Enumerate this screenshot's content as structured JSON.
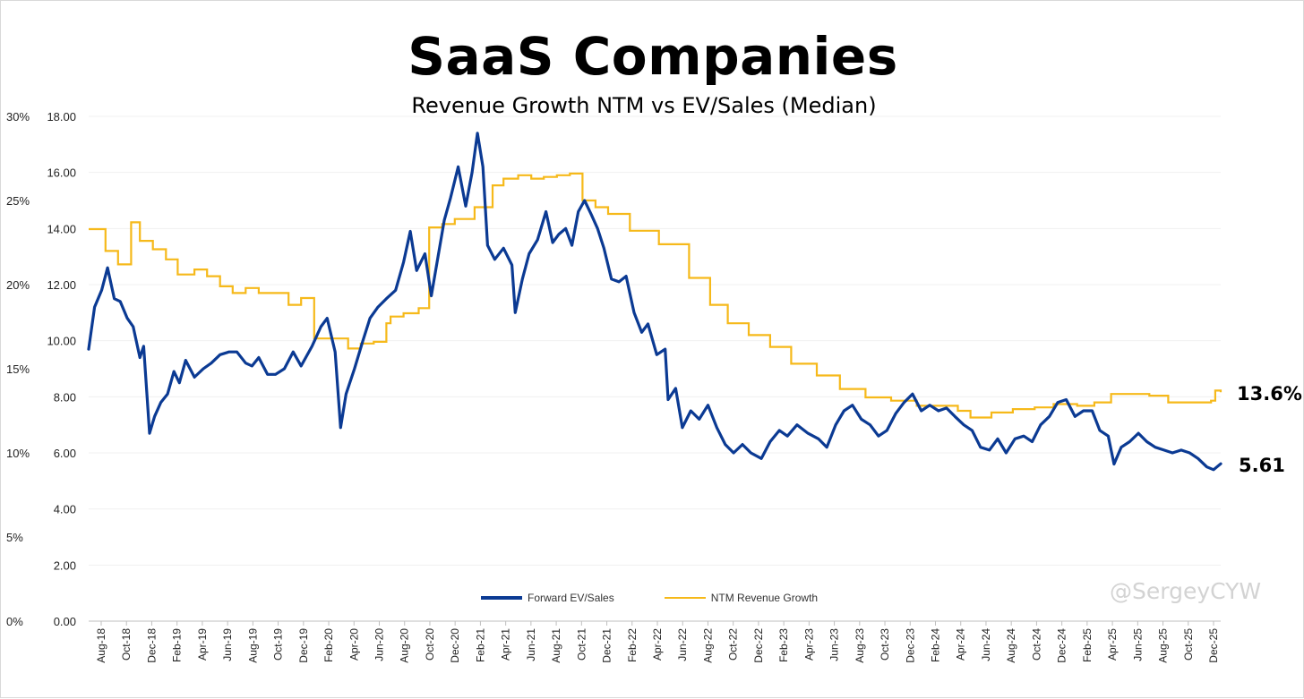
{
  "chart_data": {
    "type": "line",
    "title": "SaaS Companies",
    "subtitle": "Revenue Growth NTM vs EV/Sales (Median)",
    "left_axis_ticks": [
      "30%",
      "25%",
      "20%",
      "15%",
      "10%",
      "5%",
      "0%"
    ],
    "left_axis_values": [
      30,
      25,
      20,
      15,
      10,
      5,
      0
    ],
    "right_axis_ticks": [
      "18.00",
      "16.00",
      "14.00",
      "12.00",
      "10.00",
      "8.00",
      "6.00",
      "4.00",
      "2.00",
      "0.00"
    ],
    "right_axis_values": [
      18,
      16,
      14,
      12,
      10,
      8,
      6,
      4,
      2,
      0
    ],
    "ylim_growth": [
      0,
      30
    ],
    "ylim_evs": [
      0,
      18
    ],
    "x_ticks": [
      "Aug-18",
      "Oct-18",
      "Dec-18",
      "Feb-19",
      "Apr-19",
      "Jun-19",
      "Aug-19",
      "Oct-19",
      "Dec-19",
      "Feb-20",
      "Apr-20",
      "Jun-20",
      "Aug-20",
      "Oct-20",
      "Dec-20",
      "Feb-21",
      "Apr-21",
      "Jun-21",
      "Aug-21",
      "Oct-21",
      "Dec-21",
      "Feb-22",
      "Apr-22",
      "Jun-22",
      "Aug-22",
      "Oct-22",
      "Dec-22",
      "Feb-23",
      "Apr-23",
      "Jun-23",
      "Aug-23",
      "Oct-23",
      "Dec-23",
      "Feb-24",
      "Apr-24",
      "Jun-24",
      "Aug-24",
      "Oct-24",
      "Dec-24",
      "Feb-25",
      "Apr-25",
      "Jun-25",
      "Aug-25",
      "Oct-25",
      "Dec-25"
    ],
    "grid": "horizontal",
    "legend_position": "bottom",
    "series": [
      {
        "name": "Forward EV/Sales",
        "axis": "right",
        "color": "#0b3a93",
        "end_label": "5.61",
        "points": [
          [
            "2018-08-01",
            9.7
          ],
          [
            "2018-08-15",
            11.2
          ],
          [
            "2018-09-01",
            11.8
          ],
          [
            "2018-09-15",
            12.6
          ],
          [
            "2018-10-01",
            11.5
          ],
          [
            "2018-10-15",
            11.4
          ],
          [
            "2018-11-01",
            10.8
          ],
          [
            "2018-11-15",
            10.5
          ],
          [
            "2018-12-01",
            9.4
          ],
          [
            "2018-12-10",
            9.8
          ],
          [
            "2018-12-24",
            6.7
          ],
          [
            "2019-01-05",
            7.3
          ],
          [
            "2019-01-20",
            7.8
          ],
          [
            "2019-02-05",
            8.1
          ],
          [
            "2019-02-20",
            8.9
          ],
          [
            "2019-03-05",
            8.5
          ],
          [
            "2019-03-20",
            9.3
          ],
          [
            "2019-04-10",
            8.7
          ],
          [
            "2019-05-01",
            9.0
          ],
          [
            "2019-05-20",
            9.2
          ],
          [
            "2019-06-10",
            9.5
          ],
          [
            "2019-07-01",
            9.6
          ],
          [
            "2019-07-20",
            9.6
          ],
          [
            "2019-08-10",
            9.2
          ],
          [
            "2019-08-25",
            9.1
          ],
          [
            "2019-09-10",
            9.4
          ],
          [
            "2019-10-01",
            8.8
          ],
          [
            "2019-10-20",
            8.8
          ],
          [
            "2019-11-10",
            9.0
          ],
          [
            "2019-12-01",
            9.6
          ],
          [
            "2019-12-20",
            9.1
          ],
          [
            "2020-01-15",
            9.8
          ],
          [
            "2020-02-05",
            10.5
          ],
          [
            "2020-02-20",
            10.8
          ],
          [
            "2020-03-10",
            9.6
          ],
          [
            "2020-03-23",
            6.9
          ],
          [
            "2020-04-05",
            8.1
          ],
          [
            "2020-04-25",
            9.0
          ],
          [
            "2020-05-15",
            10.0
          ],
          [
            "2020-06-01",
            10.8
          ],
          [
            "2020-06-20",
            11.2
          ],
          [
            "2020-07-10",
            11.5
          ],
          [
            "2020-08-01",
            11.8
          ],
          [
            "2020-08-20",
            12.8
          ],
          [
            "2020-09-05",
            13.9
          ],
          [
            "2020-09-20",
            12.5
          ],
          [
            "2020-10-10",
            13.1
          ],
          [
            "2020-10-25",
            11.6
          ],
          [
            "2020-11-10",
            13.0
          ],
          [
            "2020-11-25",
            14.3
          ],
          [
            "2020-12-10",
            15.1
          ],
          [
            "2020-12-28",
            16.2
          ],
          [
            "2021-01-15",
            14.8
          ],
          [
            "2021-01-30",
            16.0
          ],
          [
            "2021-02-12",
            17.4
          ],
          [
            "2021-02-25",
            16.2
          ],
          [
            "2021-03-08",
            13.4
          ],
          [
            "2021-03-25",
            12.9
          ],
          [
            "2021-04-15",
            13.3
          ],
          [
            "2021-05-05",
            12.7
          ],
          [
            "2021-05-13",
            11.0
          ],
          [
            "2021-05-30",
            12.2
          ],
          [
            "2021-06-15",
            13.1
          ],
          [
            "2021-07-05",
            13.6
          ],
          [
            "2021-07-25",
            14.6
          ],
          [
            "2021-08-10",
            13.5
          ],
          [
            "2021-08-25",
            13.8
          ],
          [
            "2021-09-10",
            14.0
          ],
          [
            "2021-09-25",
            13.4
          ],
          [
            "2021-10-10",
            14.6
          ],
          [
            "2021-10-25",
            15.0
          ],
          [
            "2021-11-10",
            14.5
          ],
          [
            "2021-11-25",
            14.0
          ],
          [
            "2021-12-10",
            13.3
          ],
          [
            "2021-12-28",
            12.2
          ],
          [
            "2022-01-15",
            12.1
          ],
          [
            "2022-02-01",
            12.3
          ],
          [
            "2022-02-20",
            11.0
          ],
          [
            "2022-03-10",
            10.3
          ],
          [
            "2022-03-25",
            10.6
          ],
          [
            "2022-04-15",
            9.5
          ],
          [
            "2022-05-05",
            9.7
          ],
          [
            "2022-05-12",
            7.9
          ],
          [
            "2022-05-30",
            8.3
          ],
          [
            "2022-06-15",
            6.9
          ],
          [
            "2022-07-05",
            7.5
          ],
          [
            "2022-07-25",
            7.2
          ],
          [
            "2022-08-15",
            7.7
          ],
          [
            "2022-09-05",
            6.9
          ],
          [
            "2022-09-25",
            6.3
          ],
          [
            "2022-10-15",
            6.0
          ],
          [
            "2022-11-05",
            6.3
          ],
          [
            "2022-11-25",
            6.0
          ],
          [
            "2022-12-20",
            5.8
          ],
          [
            "2023-01-10",
            6.4
          ],
          [
            "2023-02-01",
            6.8
          ],
          [
            "2023-02-20",
            6.6
          ],
          [
            "2023-03-15",
            7.0
          ],
          [
            "2023-04-10",
            6.7
          ],
          [
            "2023-05-05",
            6.5
          ],
          [
            "2023-05-25",
            6.2
          ],
          [
            "2023-06-15",
            7.0
          ],
          [
            "2023-07-05",
            7.5
          ],
          [
            "2023-07-25",
            7.7
          ],
          [
            "2023-08-15",
            7.2
          ],
          [
            "2023-09-05",
            7.0
          ],
          [
            "2023-09-25",
            6.6
          ],
          [
            "2023-10-15",
            6.8
          ],
          [
            "2023-11-05",
            7.4
          ],
          [
            "2023-11-25",
            7.8
          ],
          [
            "2023-12-15",
            8.1
          ],
          [
            "2024-01-05",
            7.5
          ],
          [
            "2024-01-25",
            7.7
          ],
          [
            "2024-02-15",
            7.5
          ],
          [
            "2024-03-05",
            7.6
          ],
          [
            "2024-03-25",
            7.3
          ],
          [
            "2024-04-15",
            7.0
          ],
          [
            "2024-05-05",
            6.8
          ],
          [
            "2024-05-25",
            6.2
          ],
          [
            "2024-06-15",
            6.1
          ],
          [
            "2024-07-05",
            6.5
          ],
          [
            "2024-07-25",
            6.0
          ],
          [
            "2024-08-15",
            6.5
          ],
          [
            "2024-09-05",
            6.6
          ],
          [
            "2024-09-25",
            6.4
          ],
          [
            "2024-10-15",
            7.0
          ],
          [
            "2024-11-05",
            7.3
          ],
          [
            "2024-11-25",
            7.8
          ],
          [
            "2024-12-15",
            7.9
          ],
          [
            "2025-01-05",
            7.3
          ],
          [
            "2025-01-25",
            7.5
          ],
          [
            "2025-02-15",
            7.5
          ],
          [
            "2025-03-05",
            6.8
          ],
          [
            "2025-03-25",
            6.6
          ],
          [
            "2025-04-08",
            5.6
          ],
          [
            "2025-04-25",
            6.2
          ],
          [
            "2025-05-15",
            6.4
          ],
          [
            "2025-06-05",
            6.7
          ],
          [
            "2025-06-25",
            6.4
          ],
          [
            "2025-07-15",
            6.2
          ],
          [
            "2025-08-05",
            6.1
          ],
          [
            "2025-08-25",
            6.0
          ],
          [
            "2025-09-15",
            6.1
          ],
          [
            "2025-10-05",
            6.0
          ],
          [
            "2025-10-25",
            5.8
          ],
          [
            "2025-11-15",
            5.5
          ],
          [
            "2025-12-01",
            5.4
          ],
          [
            "2025-12-18",
            5.61
          ]
        ]
      },
      {
        "name": "NTM Revenue Growth",
        "axis": "left",
        "color": "#f6b91a",
        "end_label": "13.6%",
        "points": [
          [
            "2018-08-01",
            23.3
          ],
          [
            "2018-09-01",
            23.3
          ],
          [
            "2018-09-10",
            22.0
          ],
          [
            "2018-10-10",
            21.2
          ],
          [
            "2018-11-10",
            23.7
          ],
          [
            "2018-12-01",
            22.6
          ],
          [
            "2019-01-01",
            22.1
          ],
          [
            "2019-02-01",
            21.5
          ],
          [
            "2019-03-01",
            20.6
          ],
          [
            "2019-04-10",
            20.9
          ],
          [
            "2019-05-10",
            20.5
          ],
          [
            "2019-06-10",
            19.9
          ],
          [
            "2019-07-10",
            19.5
          ],
          [
            "2019-08-10",
            19.8
          ],
          [
            "2019-09-10",
            19.5
          ],
          [
            "2019-10-20",
            19.5
          ],
          [
            "2019-11-20",
            18.8
          ],
          [
            "2019-12-20",
            19.2
          ],
          [
            "2020-01-20",
            16.8
          ],
          [
            "2020-03-01",
            16.8
          ],
          [
            "2020-04-10",
            16.2
          ],
          [
            "2020-05-10",
            16.5
          ],
          [
            "2020-06-10",
            16.6
          ],
          [
            "2020-07-10",
            17.7
          ],
          [
            "2020-07-20",
            18.1
          ],
          [
            "2020-08-20",
            18.3
          ],
          [
            "2020-09-25",
            18.6
          ],
          [
            "2020-10-20",
            23.4
          ],
          [
            "2020-11-20",
            23.6
          ],
          [
            "2020-12-20",
            23.9
          ],
          [
            "2021-02-05",
            24.6
          ],
          [
            "2021-03-20",
            25.9
          ],
          [
            "2021-04-15",
            26.3
          ],
          [
            "2021-05-20",
            26.5
          ],
          [
            "2021-06-20",
            26.3
          ],
          [
            "2021-07-20",
            26.4
          ],
          [
            "2021-08-20",
            26.5
          ],
          [
            "2021-09-20",
            26.6
          ],
          [
            "2021-10-20",
            25.0
          ],
          [
            "2021-11-20",
            24.6
          ],
          [
            "2021-12-20",
            24.2
          ],
          [
            "2022-02-10",
            23.2
          ],
          [
            "2022-04-20",
            22.4
          ],
          [
            "2022-07-01",
            20.4
          ],
          [
            "2022-08-20",
            18.8
          ],
          [
            "2022-10-01",
            17.7
          ],
          [
            "2022-11-20",
            17.0
          ],
          [
            "2023-01-10",
            16.3
          ],
          [
            "2023-03-01",
            15.3
          ],
          [
            "2023-05-01",
            14.6
          ],
          [
            "2023-06-25",
            13.8
          ],
          [
            "2023-08-25",
            13.3
          ],
          [
            "2023-10-25",
            13.1
          ],
          [
            "2023-12-25",
            12.8
          ],
          [
            "2024-02-20",
            12.8
          ],
          [
            "2024-04-01",
            12.5
          ],
          [
            "2024-05-01",
            12.1
          ],
          [
            "2024-06-20",
            12.4
          ],
          [
            "2024-08-10",
            12.6
          ],
          [
            "2024-10-01",
            12.7
          ],
          [
            "2024-11-15",
            12.9
          ],
          [
            "2025-01-10",
            12.8
          ],
          [
            "2025-02-20",
            13.0
          ],
          [
            "2025-04-01",
            13.5
          ],
          [
            "2025-06-01",
            13.5
          ],
          [
            "2025-07-01",
            13.4
          ],
          [
            "2025-08-15",
            13.0
          ],
          [
            "2025-10-01",
            13.0
          ],
          [
            "2025-11-25",
            13.1
          ],
          [
            "2025-12-05",
            13.7
          ],
          [
            "2025-12-18",
            13.6
          ]
        ]
      }
    ]
  },
  "watermark": "@SergeyCYW"
}
